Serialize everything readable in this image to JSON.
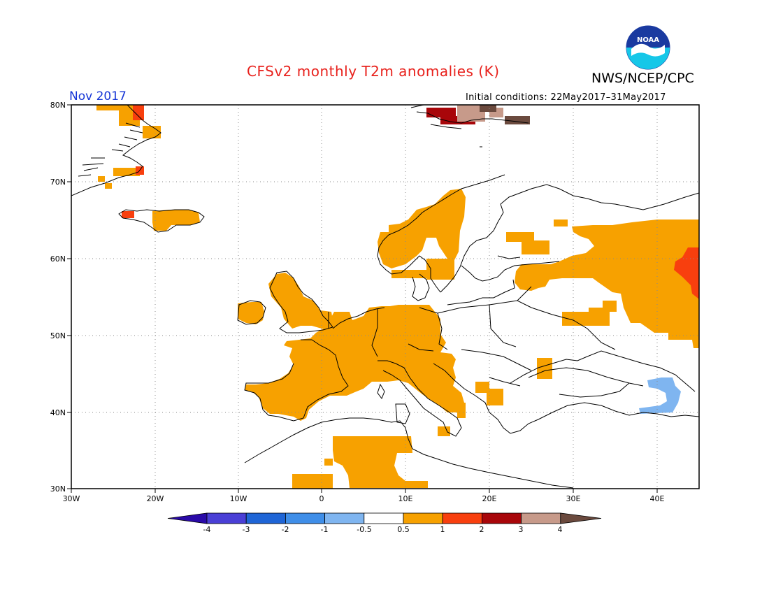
{
  "header": {
    "title": "CFSv2 monthly T2m anomalies (K)",
    "agency": "NWS/NCEP/CPC",
    "logo_text": "NOAA",
    "month": "Nov 2017",
    "initial_conditions": "Initial conditions: 22May2017–31May2017"
  },
  "map": {
    "projection": "lat-lon",
    "extent": {
      "lon": [
        -30,
        45
      ],
      "lat": [
        30,
        80
      ]
    },
    "lat_labels": [
      "80N",
      "70N",
      "60N",
      "50N",
      "40N",
      "30N"
    ],
    "lon_labels": [
      "30W",
      "20W",
      "10W",
      "0",
      "10E",
      "20E",
      "30E",
      "40E"
    ]
  },
  "colorbar": {
    "tick_labels": [
      "-4",
      "-3",
      "-2",
      "-1",
      "-0.5",
      "0.5",
      "1",
      "2",
      "3",
      "4"
    ],
    "colors": [
      "#2a0aa8",
      "#4a3fd6",
      "#1f65d6",
      "#3f8ee8",
      "#7fb5f0",
      "#ffffff",
      "#f7a100",
      "#f83f0e",
      "#a8060a",
      "#c79a8a",
      "#6b4a3e"
    ]
  },
  "colors": {
    "orange": "#f7a100",
    "red": "#f83f0e",
    "darkred": "#a8060a",
    "tan": "#c79a8a",
    "brown": "#6b4a3e",
    "lightblue": "#7fb5f0"
  }
}
